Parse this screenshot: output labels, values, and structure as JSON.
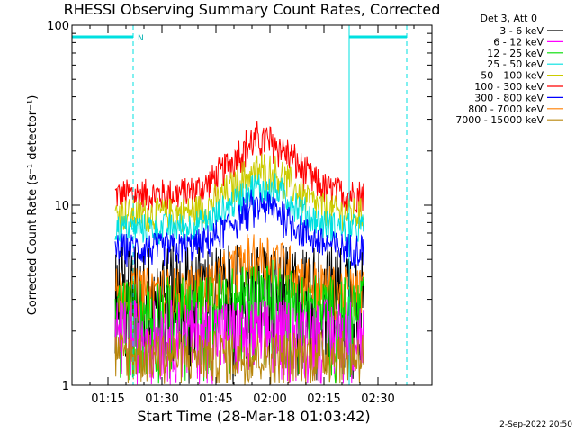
{
  "chart_data": {
    "type": "line",
    "title": "RHESSI Observing Summary Count Rates, Corrected",
    "xlabel": "Start Time (28-Mar-18 01:03:42)",
    "ylabel": "Corrected Count Rate (s⁻¹ detector⁻¹)",
    "yscale": "log",
    "ylim": [
      1,
      100
    ],
    "y_ticks": [
      "1",
      "10",
      "100"
    ],
    "xlim": [
      "01:05",
      "02:45"
    ],
    "x_ticks": [
      "01:15",
      "01:30",
      "01:45",
      "02:00",
      "02:15",
      "02:30"
    ],
    "legend_title": "Det 3, Att 0",
    "legend_position": "right",
    "date_stamp": "2-Sep-2022 20:50",
    "orbit_markers": [
      {
        "kind": "night",
        "start": "01:05",
        "end": "01:22",
        "label": "N"
      },
      {
        "kind": "night",
        "start": "02:22",
        "end": "02:38",
        "label": ""
      }
    ],
    "data_range": {
      "start": "01:17",
      "end": "02:26"
    },
    "series": [
      {
        "name": "3 - 6 keV",
        "color": "#000000",
        "low": 1.0,
        "high": 6.0,
        "peak": 6.0
      },
      {
        "name": "6 - 12 keV",
        "color": "#ff00ff",
        "low": 1.0,
        "high": 3.0,
        "peak": 3.0
      },
      {
        "name": "12 - 25 keV",
        "color": "#00dd00",
        "low": 1.0,
        "high": 4.0,
        "peak": 5.0
      },
      {
        "name": "25 - 50 keV",
        "color": "#00e0e0",
        "low": 6.0,
        "high": 9.0,
        "peak": 15.0
      },
      {
        "name": "50 - 100 keV",
        "color": "#cccc00",
        "low": 7.0,
        "high": 11.0,
        "peak": 19.0
      },
      {
        "name": "100 - 300 keV",
        "color": "#ff0000",
        "low": 9.0,
        "high": 14.0,
        "peak": 28.0
      },
      {
        "name": "300 - 800 keV",
        "color": "#0000ff",
        "low": 4.5,
        "high": 7.0,
        "peak": 12.0
      },
      {
        "name": "800 - 7000 keV",
        "color": "#ff7f00",
        "low": 2.2,
        "high": 4.5,
        "peak": 7.0
      },
      {
        "name": "7000 - 15000 keV",
        "color": "#b8860b",
        "low": 1.0,
        "high": 2.0,
        "peak": 2.0
      }
    ]
  }
}
